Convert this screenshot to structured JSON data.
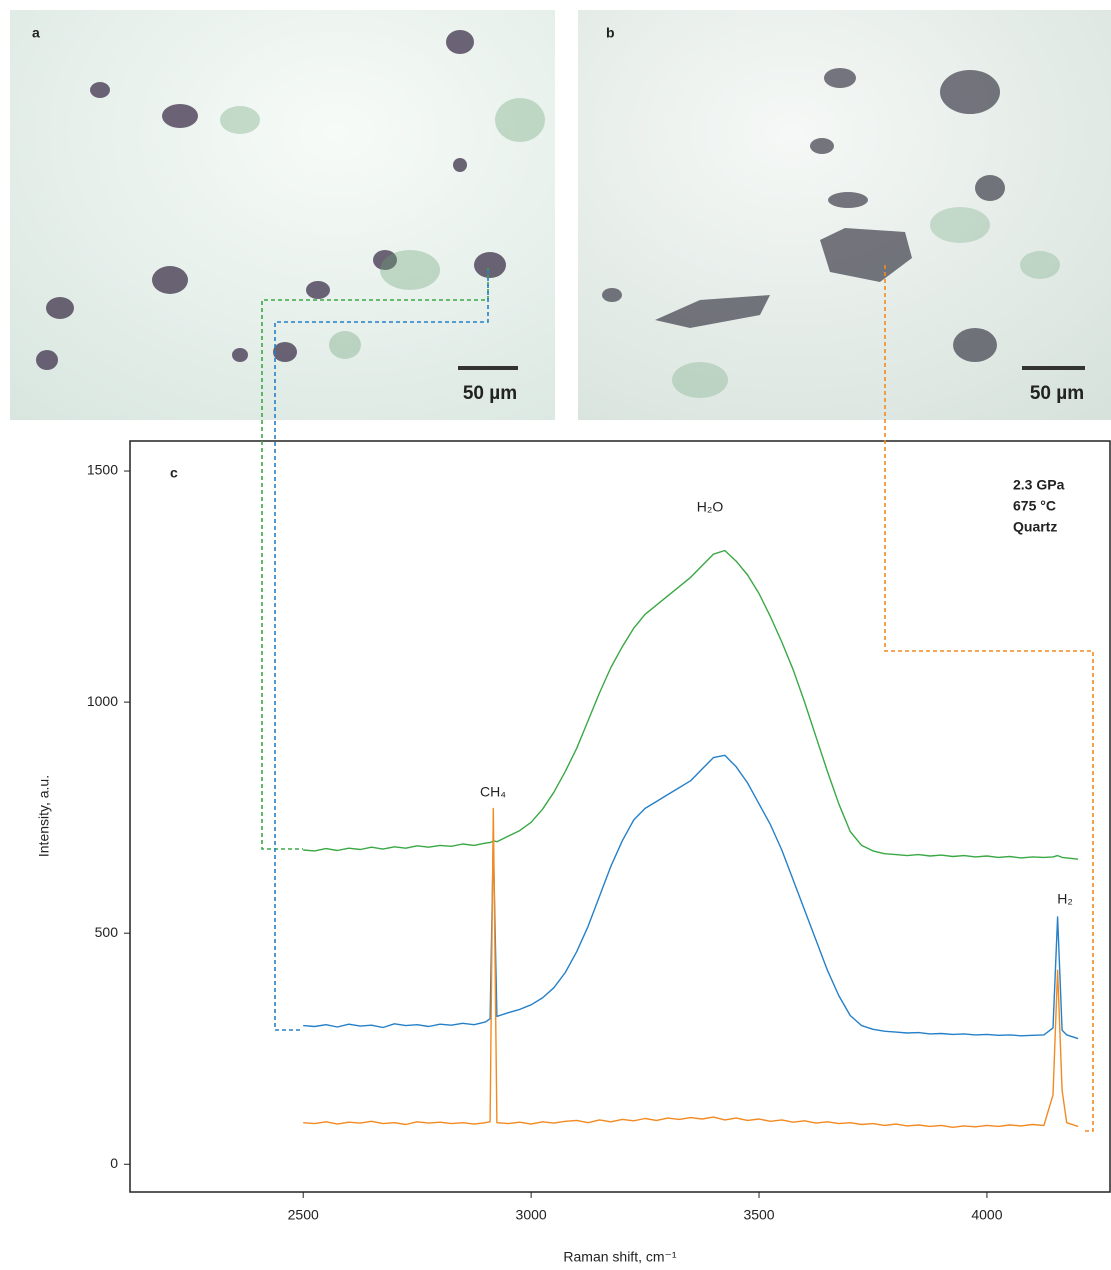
{
  "panels": [
    {
      "label": "a",
      "scale_bar": "50 µm"
    },
    {
      "label": "b",
      "scale_bar": "50 µm"
    }
  ],
  "chart_data": {
    "type": "line",
    "panel_label": "c",
    "conditions": [
      "2.3 GPa",
      "675 °C",
      "Quartz"
    ],
    "peak_labels": [
      "CH₄",
      "H₂O",
      "H₂"
    ],
    "x_label": "Raman shift, cm⁻¹",
    "y_label": "Intensity, a.u.",
    "xlim": [
      2120,
      4270
    ],
    "ylim": [
      -60,
      1565
    ],
    "xticks": [
      2500,
      3000,
      3500,
      4000
    ],
    "yticks": [
      0,
      500,
      1000,
      1500
    ],
    "grid": false,
    "x": [
      2500,
      2525,
      2550,
      2575,
      2600,
      2625,
      2650,
      2675,
      2700,
      2725,
      2750,
      2775,
      2800,
      2825,
      2850,
      2875,
      2900,
      2910,
      2917,
      2925,
      2950,
      2975,
      3000,
      3025,
      3050,
      3075,
      3100,
      3125,
      3150,
      3175,
      3200,
      3225,
      3250,
      3275,
      3300,
      3325,
      3350,
      3375,
      3400,
      3425,
      3450,
      3475,
      3500,
      3525,
      3550,
      3575,
      3600,
      3625,
      3650,
      3675,
      3700,
      3725,
      3750,
      3775,
      3800,
      3825,
      3850,
      3875,
      3900,
      3925,
      3950,
      3975,
      4000,
      4025,
      4050,
      4075,
      4100,
      4125,
      4145,
      4155,
      4165,
      4175,
      4200
    ],
    "series": [
      {
        "color": "#3aa845",
        "values": [
          680,
          678,
          683,
          679,
          684,
          681,
          686,
          682,
          687,
          684,
          689,
          686,
          690,
          688,
          693,
          690,
          695,
          696,
          700,
          698,
          710,
          722,
          740,
          768,
          805,
          850,
          900,
          960,
          1020,
          1075,
          1120,
          1160,
          1190,
          1210,
          1230,
          1250,
          1270,
          1295,
          1320,
          1328,
          1305,
          1275,
          1235,
          1185,
          1130,
          1070,
          1000,
          925,
          850,
          780,
          720,
          690,
          678,
          672,
          670,
          668,
          670,
          667,
          669,
          666,
          668,
          665,
          667,
          664,
          666,
          663,
          665,
          664,
          665,
          668,
          664,
          663,
          660
        ]
      },
      {
        "color": "#2680c8",
        "values": [
          300,
          298,
          302,
          297,
          303,
          299,
          301,
          296,
          304,
          300,
          302,
          298,
          303,
          301,
          305,
          302,
          308,
          315,
          700,
          320,
          328,
          335,
          345,
          360,
          382,
          415,
          460,
          515,
          580,
          645,
          700,
          745,
          770,
          785,
          800,
          815,
          830,
          855,
          880,
          885,
          860,
          825,
          780,
          735,
          680,
          615,
          550,
          485,
          420,
          365,
          322,
          300,
          292,
          288,
          286,
          284,
          285,
          282,
          283,
          281,
          282,
          280,
          281,
          279,
          280,
          278,
          279,
          280,
          295,
          535,
          290,
          280,
          272
        ]
      },
      {
        "color": "#f28a22",
        "values": [
          90,
          88,
          92,
          87,
          91,
          89,
          93,
          88,
          90,
          86,
          92,
          89,
          91,
          88,
          90,
          87,
          90,
          92,
          770,
          90,
          88,
          91,
          87,
          92,
          89,
          93,
          95,
          90,
          96,
          92,
          97,
          94,
          99,
          95,
          100,
          97,
          101,
          98,
          102,
          96,
          100,
          95,
          98,
          93,
          96,
          91,
          94,
          89,
          92,
          88,
          90,
          86,
          88,
          84,
          87,
          83,
          85,
          82,
          84,
          80,
          83,
          81,
          84,
          82,
          85,
          83,
          86,
          84,
          150,
          420,
          160,
          90,
          82
        ]
      }
    ]
  }
}
